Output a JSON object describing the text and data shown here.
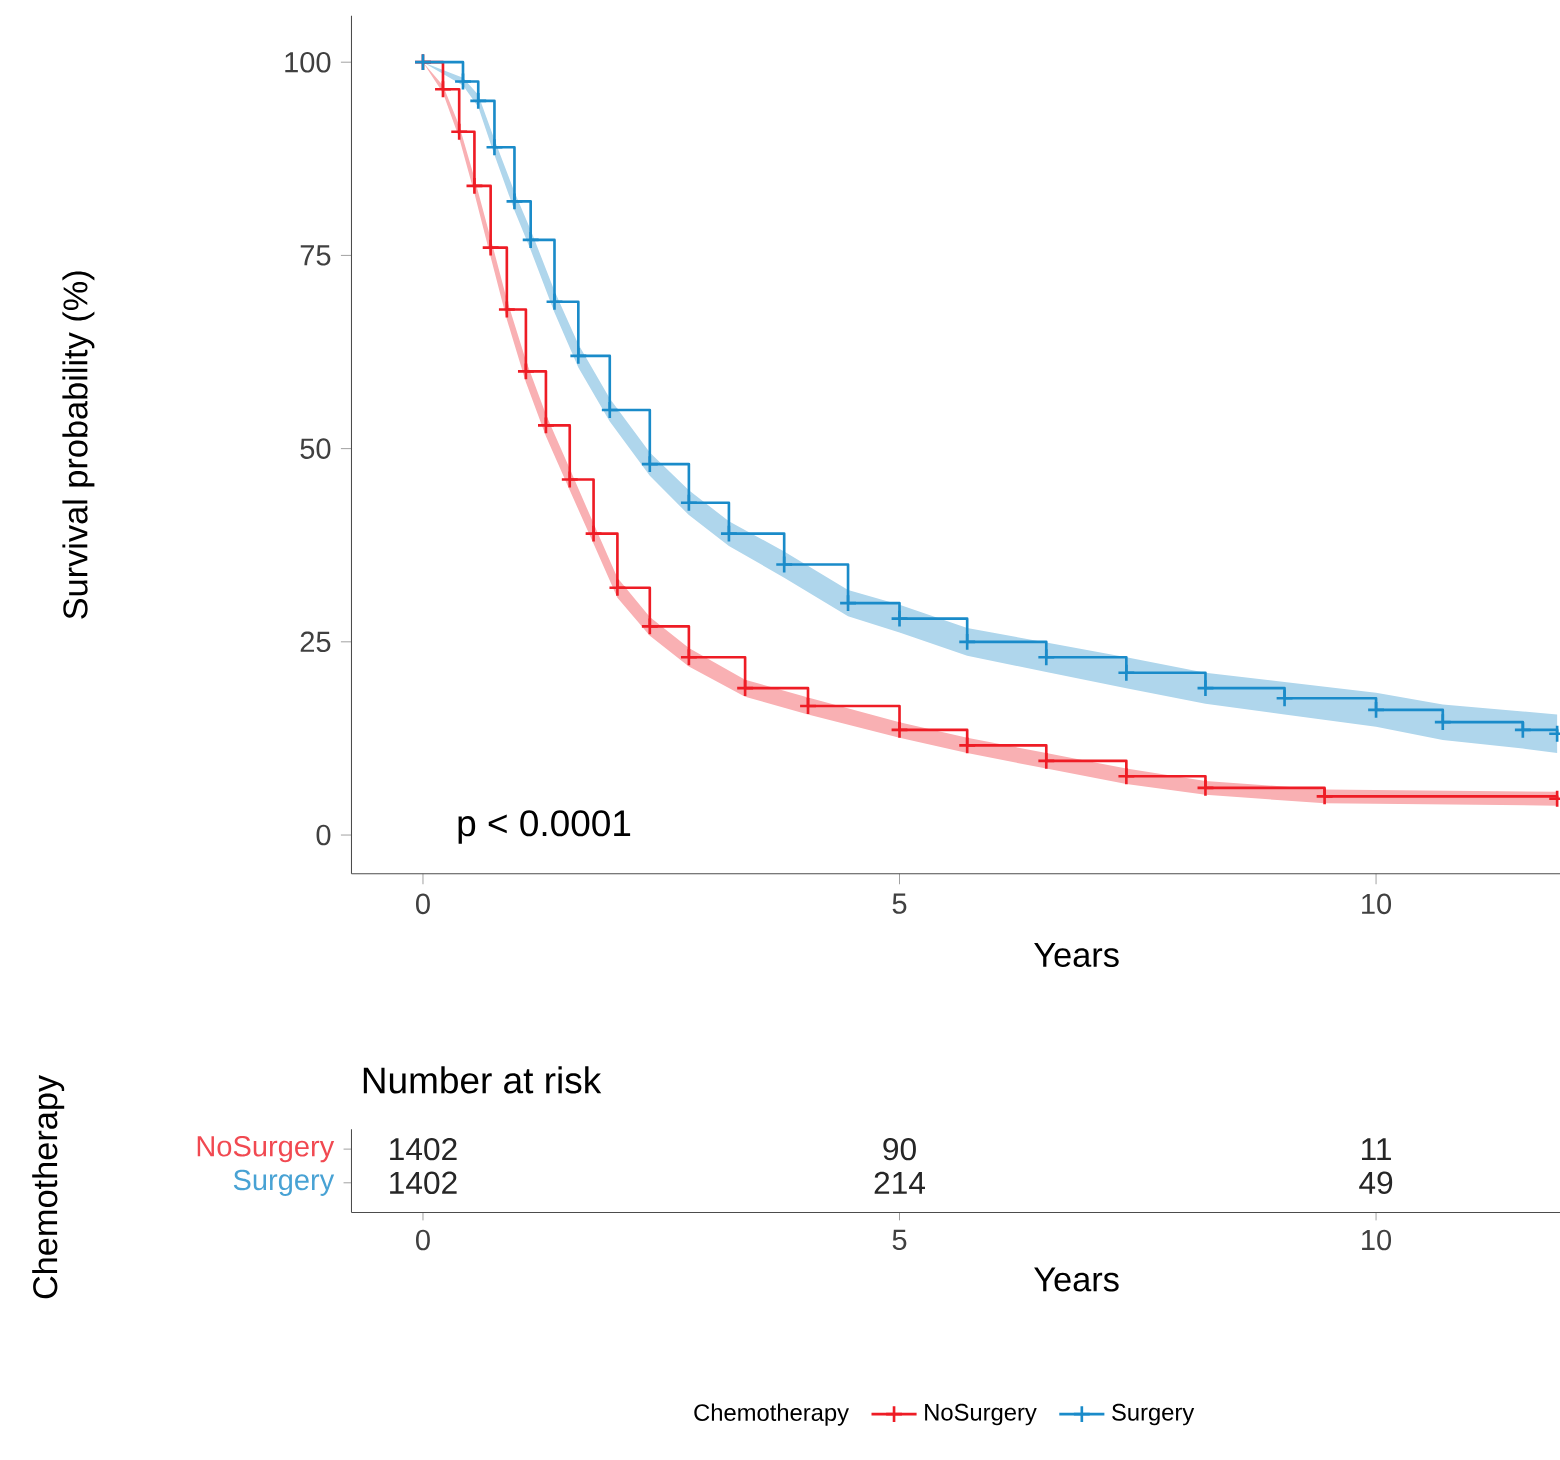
{
  "chart_data": [
    {
      "type": "step",
      "ylabel": "Survival probability (%)",
      "xlabel": "Years",
      "legend_title": "Chemotherapy",
      "legend": "bottom",
      "marker": "cross",
      "xlim": [
        -0.75,
        11.93
      ],
      "ylim": [
        -5,
        106
      ],
      "xticks": [
        0,
        5,
        10
      ],
      "yticks": [
        0,
        25,
        50,
        75,
        100
      ],
      "annotations": [
        "p < 0.0001"
      ],
      "series": [
        {
          "name": "NoSurgery",
          "color": "#ee1c25",
          "x": [
            0,
            0.21,
            0.38,
            0.54,
            0.71,
            0.88,
            1.08,
            1.29,
            1.54,
            1.79,
            2.04,
            2.38,
            2.79,
            3.38,
            4.04,
            5,
            5.71,
            6.54,
            7.38,
            8.21,
            9.46,
            11.9
          ],
          "values": [
            100,
            96.5,
            91,
            84,
            76,
            68,
            60,
            53,
            46,
            39,
            32,
            27,
            23,
            19,
            16.7,
            13.6,
            11.6,
            9.6,
            7.6,
            6.1,
            5,
            4.7
          ],
          "lower": [
            100,
            96,
            90.2,
            83,
            74.8,
            66.7,
            58.6,
            51.6,
            44.6,
            37.7,
            30.7,
            25.8,
            21.8,
            17.9,
            15.6,
            12.6,
            10.6,
            8.6,
            6.6,
            5.2,
            4.1,
            3.8
          ],
          "upper": [
            100,
            97,
            91.8,
            85,
            77.2,
            69.3,
            61.4,
            54.4,
            47.4,
            40.3,
            33.3,
            28.2,
            24.2,
            20.1,
            17.8,
            14.6,
            12.6,
            10.6,
            8.6,
            7,
            5.9,
            5.6
          ]
        },
        {
          "name": "Surgery",
          "color": "#1a8bc9",
          "x": [
            0,
            0.42,
            0.58,
            0.75,
            0.96,
            1.13,
            1.38,
            1.63,
            1.96,
            2.38,
            2.79,
            3.21,
            3.79,
            4.46,
            5,
            5.71,
            6.54,
            7.38,
            8.21,
            9.04,
            10,
            10.7,
            11.54,
            11.9
          ],
          "values": [
            100,
            97.5,
            95,
            89,
            82,
            77,
            69,
            62,
            55,
            48,
            43,
            39,
            35,
            30,
            28,
            25,
            23,
            21,
            19,
            17.7,
            16.2,
            14.6,
            13.6,
            13.1
          ],
          "lower": [
            100,
            97,
            94.2,
            88,
            80.8,
            75.7,
            67.6,
            60.5,
            53.5,
            46.5,
            41.4,
            37.4,
            33.3,
            28.3,
            26.2,
            23.2,
            21.1,
            19,
            17,
            15.6,
            14,
            12.3,
            11.2,
            10.6
          ],
          "upper": [
            100,
            98,
            95.8,
            90,
            83.2,
            78.3,
            70.4,
            63.5,
            56.5,
            49.5,
            44.6,
            40.6,
            36.7,
            31.7,
            29.8,
            26.8,
            24.9,
            23,
            21,
            19.8,
            18.4,
            16.9,
            16,
            15.6
          ]
        }
      ]
    },
    {
      "type": "heatmap",
      "title": "Number at risk",
      "xlabel": "Years",
      "ylabel": "Chemotherapy",
      "categories": [
        "0",
        "5",
        "10"
      ],
      "y_categories": [
        "NoSurgery",
        "Surgery"
      ],
      "data_labels": true,
      "cells": [
        [
          1402,
          90,
          11
        ],
        [
          1402,
          214,
          49
        ]
      ]
    }
  ]
}
